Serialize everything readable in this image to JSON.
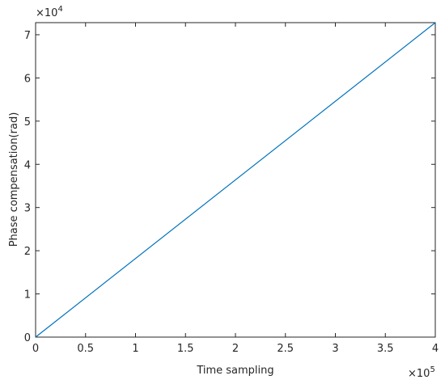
{
  "chart_data": {
    "type": "line",
    "x_label": "Time sampling",
    "y_label": "Phase compensation(rad)",
    "x_multiplier": {
      "base": "×10",
      "exponent": "5"
    },
    "y_multiplier": {
      "base": "×10",
      "exponent": "4"
    },
    "x": [
      0,
      400000
    ],
    "series": [
      {
        "color": "#0072bd",
        "values": [
          0,
          72800
        ]
      }
    ],
    "xlim": [
      0,
      400000
    ],
    "ylim": [
      0,
      72800
    ],
    "xticks": [
      0,
      {
        "value": 50000,
        "label": "0.5"
      },
      {
        "value": 100000,
        "label": "1"
      },
      {
        "value": 150000,
        "label": "1.5"
      },
      {
        "value": 200000,
        "label": "2"
      },
      {
        "value": 250000,
        "label": "2.5"
      },
      {
        "value": 300000,
        "label": "3"
      },
      {
        "value": 350000,
        "label": "3.5"
      },
      {
        "value": 400000,
        "label": "4"
      }
    ],
    "yticks": [
      0,
      {
        "value": 10000,
        "label": "1"
      },
      {
        "value": 20000,
        "label": "2"
      },
      {
        "value": 30000,
        "label": "3"
      },
      {
        "value": 40000,
        "label": "4"
      },
      {
        "value": 50000,
        "label": "5"
      },
      {
        "value": 60000,
        "label": "6"
      },
      {
        "value": 70000,
        "label": "7"
      }
    ],
    "grid": false
  }
}
